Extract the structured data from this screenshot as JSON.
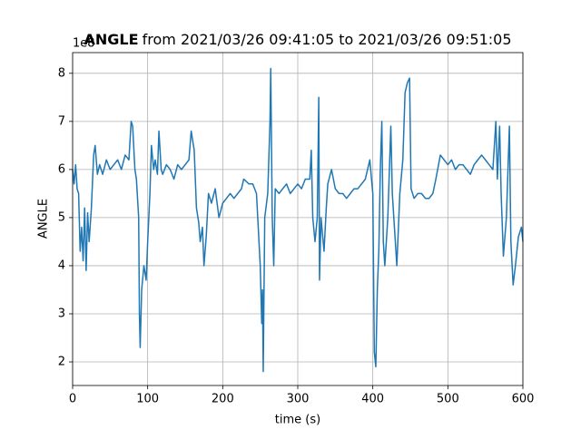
{
  "chart_data": {
    "type": "line",
    "title_bold": "ANGLE",
    "title": "from 2021/03/26 09:41:05 to 2021/03/26 09:51:05",
    "offset_label": "1e8",
    "xlabel": "time (s)",
    "ylabel": "ANGLE",
    "xlim": [
      0,
      600
    ],
    "ylim": [
      1.51,
      8.43
    ],
    "xticks": [
      0,
      100,
      200,
      300,
      400,
      500,
      600
    ],
    "yticks": [
      2,
      3,
      4,
      5,
      6,
      7,
      8
    ],
    "grid": true,
    "series": [
      {
        "color": "#1f77b4",
        "x": [
          0,
          2,
          4,
          6,
          8,
          10,
          12,
          14,
          16,
          18,
          20,
          22,
          25,
          28,
          30,
          33,
          36,
          40,
          45,
          50,
          55,
          60,
          65,
          70,
          75,
          78,
          80,
          83,
          85,
          88,
          89,
          90,
          92,
          95,
          98,
          100,
          103,
          105,
          108,
          110,
          113,
          115,
          118,
          120,
          125,
          130,
          135,
          140,
          145,
          150,
          155,
          158,
          162,
          165,
          168,
          170,
          173,
          175,
          178,
          181,
          185,
          190,
          195,
          200,
          205,
          210,
          215,
          220,
          225,
          228,
          235,
          240,
          245,
          250,
          252,
          253,
          254,
          256,
          260,
          263,
          264,
          266,
          268,
          270,
          275,
          280,
          285,
          290,
          295,
          300,
          305,
          310,
          316,
          318,
          320,
          323,
          326,
          328,
          329,
          331,
          335,
          338,
          340,
          345,
          350,
          355,
          360,
          365,
          370,
          375,
          380,
          385,
          390,
          396,
          400,
          402,
          404,
          406,
          408,
          410,
          412,
          414,
          416,
          420,
          424,
          426,
          428,
          432,
          436,
          440,
          443,
          446,
          449,
          451,
          455,
          460,
          465,
          470,
          475,
          480,
          484,
          490,
          495,
          500,
          505,
          510,
          515,
          520,
          525,
          530,
          535,
          540,
          545,
          550,
          555,
          560,
          564,
          566,
          569,
          571,
          574,
          578,
          582,
          584,
          587,
          590,
          594,
          598,
          600
        ],
        "values": [
          6.0,
          5.7,
          6.1,
          5.6,
          5.5,
          4.3,
          4.8,
          4.1,
          5.2,
          3.9,
          5.1,
          4.5,
          5.2,
          6.3,
          6.5,
          5.9,
          6.1,
          5.9,
          6.2,
          6.0,
          6.1,
          6.2,
          6.0,
          6.3,
          6.2,
          7.0,
          6.9,
          6.0,
          5.8,
          5.0,
          3.0,
          2.3,
          3.5,
          4.0,
          3.7,
          4.5,
          5.5,
          6.5,
          6.0,
          6.2,
          5.9,
          6.8,
          6.0,
          5.9,
          6.1,
          6.0,
          5.8,
          6.1,
          6.0,
          6.1,
          6.2,
          6.8,
          6.4,
          5.2,
          4.9,
          4.5,
          4.8,
          4.0,
          4.6,
          5.5,
          5.3,
          5.6,
          5.0,
          5.3,
          5.4,
          5.5,
          5.4,
          5.5,
          5.6,
          5.8,
          5.7,
          5.7,
          5.5,
          4.0,
          2.8,
          3.5,
          1.8,
          5.0,
          5.5,
          7.0,
          8.1,
          5.0,
          4.0,
          5.6,
          5.5,
          5.6,
          5.7,
          5.5,
          5.6,
          5.7,
          5.6,
          5.8,
          5.8,
          6.4,
          5.0,
          4.5,
          5.0,
          7.5,
          3.7,
          5.0,
          4.3,
          5.2,
          5.7,
          6.0,
          5.6,
          5.5,
          5.5,
          5.4,
          5.5,
          5.6,
          5.6,
          5.7,
          5.8,
          6.2,
          5.5,
          2.2,
          1.9,
          3.5,
          4.3,
          6.0,
          7.0,
          4.5,
          4.0,
          5.0,
          6.9,
          5.5,
          5.0,
          4.0,
          5.5,
          6.2,
          7.6,
          7.8,
          7.9,
          5.6,
          5.4,
          5.5,
          5.5,
          5.4,
          5.4,
          5.5,
          5.8,
          6.3,
          6.2,
          6.1,
          6.2,
          6.0,
          6.1,
          6.1,
          6.0,
          5.9,
          6.1,
          6.2,
          6.3,
          6.2,
          6.1,
          6.0,
          7.0,
          5.8,
          6.9,
          5.5,
          4.2,
          5.0,
          6.9,
          4.5,
          3.6,
          4.0,
          4.6,
          4.8,
          4.5
        ]
      }
    ]
  }
}
